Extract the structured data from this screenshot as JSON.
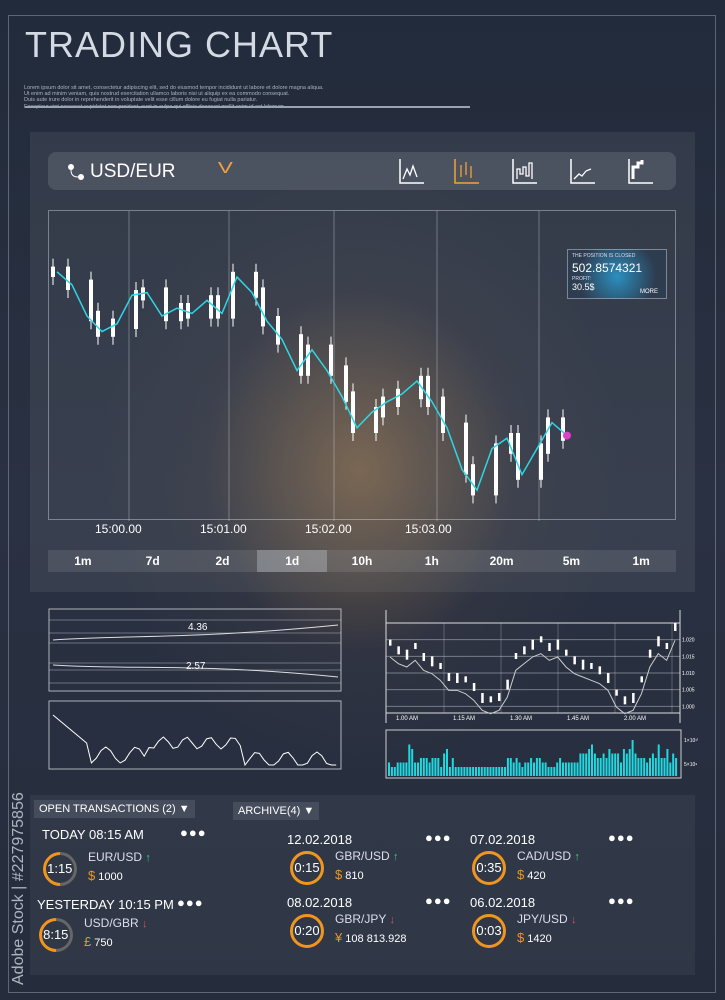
{
  "header": {
    "title": "TRADING CHART",
    "lorem": [
      "Lorem ipsum dolor sit amet, consectetur adipiscing elit, sed do eiusmod tempor incididunt ut labore et dolore magna aliqua.",
      "Ut enim ad minim veniam, quis nostrud exercitation ullamco laboris nisi ut aliquip ex ea commodo consequat.",
      "Duis aute irure dolor in reprehenderit in voluptate velit esse cillum dolore eu fugiat nulla pariatur.",
      "Excepteur sint occaecat cupidatat non proident, sunt in culpa qui officia deserunt mollit anim id est laborum."
    ]
  },
  "toolbar": {
    "pair": "USD/EUR",
    "chart_types": [
      "line-chart-icon",
      "candlestick-icon",
      "bar-chart-icon",
      "trend-icon",
      "step-chart-icon"
    ],
    "selected_type": 1,
    "accent": "#f2a33a"
  },
  "position": {
    "title": "THE POSITION IS CLOSED",
    "value": "502.8574321",
    "profit_label": "PROFIT:",
    "profit": "30.5$",
    "more": "MORE"
  },
  "timeframes": {
    "items": [
      "1m",
      "7d",
      "2d",
      "1d",
      "10h",
      "1h",
      "20m",
      "5m",
      "1m"
    ],
    "selected": 3
  },
  "chart_data": [
    {
      "type": "line",
      "xticks": [
        "15:00.00",
        "15:01.00",
        "15:02.00",
        "15:03.00"
      ],
      "line_color": "#2fd6e6",
      "values": [
        92,
        87,
        75,
        69,
        72,
        83,
        84,
        75,
        78,
        76,
        81,
        76,
        90,
        84,
        73,
        66,
        54,
        62,
        54,
        44,
        32,
        38,
        42,
        45,
        50,
        42,
        32,
        16,
        8,
        24,
        28,
        14,
        24,
        34,
        29
      ],
      "ylim": [
        0,
        100
      ]
    },
    {
      "type": "line",
      "labels": [
        "4.36",
        "2.57"
      ]
    },
    {
      "type": "line",
      "yticks": [
        "1.020",
        "1.015",
        "1.010",
        "1.005",
        "1.000"
      ],
      "xticks": [
        "1.00 AM",
        "1.15 AM",
        "1.30 AM",
        "1.45 AM",
        "2.00 AM"
      ],
      "ylim": [
        0.998,
        1.025
      ],
      "values": [
        1.016,
        1.014,
        1.013,
        1.015,
        1.012,
        1.011,
        1.009,
        1.006,
        1.006,
        1.005,
        1.003,
        1.0,
        0.999,
        1.0,
        1.004,
        1.012,
        1.014,
        1.016,
        1.017,
        1.015,
        1.016,
        1.013,
        1.011,
        1.01,
        1.009,
        1.008,
        1.006,
        1.001,
        0.999,
        1.0,
        1.005,
        1.013,
        1.017,
        1.015,
        1.021
      ]
    },
    {
      "type": "bar",
      "ylabels": [
        "1×10¹⁰",
        "5×10⁹"
      ],
      "bar_color": "#22d8e0",
      "values": [
        3,
        2,
        2,
        3,
        3,
        3,
        3,
        7,
        6,
        3,
        3,
        4,
        4,
        4,
        3,
        4,
        4,
        4,
        2,
        5,
        6,
        2,
        4,
        2,
        2,
        2,
        2,
        2,
        2,
        2,
        2,
        2,
        2,
        2,
        2,
        2,
        2,
        2,
        2,
        2,
        2,
        4,
        4,
        3,
        4,
        3,
        2,
        3,
        3,
        4,
        3,
        4,
        4,
        3,
        3,
        2,
        2,
        2,
        3,
        4,
        3,
        3,
        3,
        3,
        3,
        3,
        5,
        5,
        5,
        6,
        7,
        5,
        4,
        4,
        5,
        4,
        6,
        5,
        5,
        5,
        3,
        6,
        5,
        6,
        8,
        5,
        4,
        4,
        4,
        3,
        4,
        5,
        4,
        7,
        4,
        4,
        6,
        3,
        5,
        4
      ]
    }
  ],
  "open": {
    "header": "OPEN TRANSACTIONS (2)",
    "items": [
      {
        "date": "TODAY 08:15 AM",
        "time": "1:15",
        "pair": "EUR/USD",
        "dir": "up",
        "sym": "$",
        "amount": "1000"
      },
      {
        "date": "YESTERDAY 10:15 PM",
        "time": "8:15",
        "pair": "USD/GBR",
        "dir": "down",
        "sym": "£",
        "amount": "750"
      }
    ]
  },
  "archive": {
    "header": "ARCHIVE(4)",
    "items": [
      {
        "date": "12.02.2018",
        "time": "0:15",
        "pair": "GBR/USD",
        "dir": "up",
        "sym": "$",
        "amount": "810"
      },
      {
        "date": "07.02.2018",
        "time": "0:35",
        "pair": "CAD/USD",
        "dir": "up",
        "sym": "$",
        "amount": "420"
      },
      {
        "date": "08.02.2018",
        "time": "0:20",
        "pair": "GBR/JPY",
        "dir": "down",
        "sym": "¥",
        "amount": "108 813.928"
      },
      {
        "date": "06.02.2018",
        "time": "0:03",
        "pair": "JPY/USD",
        "dir": "down",
        "sym": "$",
        "amount": "1420"
      }
    ]
  },
  "arrows": {
    "up": "↑",
    "down": "↓"
  },
  "more_dots": "●●●",
  "watermark": "Adobe Stock | #227975856"
}
